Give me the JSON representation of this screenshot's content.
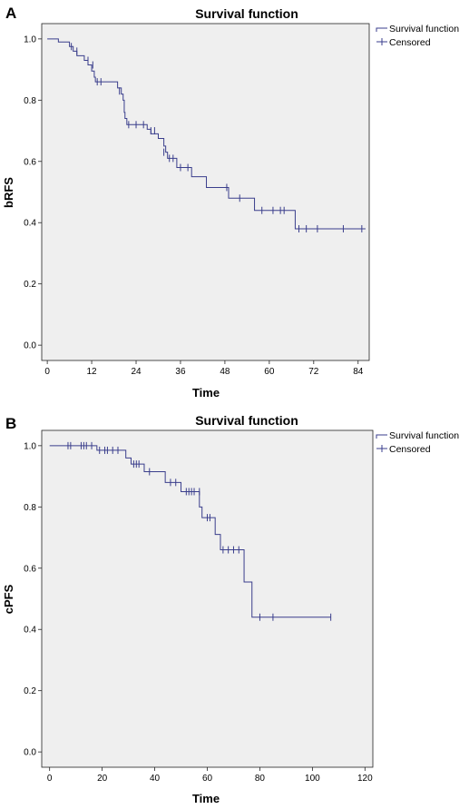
{
  "colors": {
    "line": "#3a3e8c",
    "panel_bg": "#efefef"
  },
  "legend": {
    "survival_label": "Survival function",
    "censored_label": "Censored"
  },
  "chart_data": [
    {
      "type": "line",
      "panel": "A",
      "title": "Survival function",
      "xlabel": "Time",
      "ylabel": "bRFS",
      "xlim": [
        -1.5,
        87
      ],
      "ylim": [
        -0.05,
        1.05
      ],
      "xticks": [
        0,
        12,
        24,
        36,
        48,
        60,
        72,
        84
      ],
      "yticks": [
        0.0,
        0.2,
        0.4,
        0.6,
        0.8,
        1.0
      ],
      "ytick_labels": [
        "0.0",
        "0.2",
        "0.4",
        "0.6",
        "0.8",
        "1.0"
      ],
      "grid": false,
      "legend_position": "top-right",
      "series": [
        {
          "name": "Survival function",
          "steps": [
            [
              0,
              1.0
            ],
            [
              1,
              1.0
            ],
            [
              3,
              0.99
            ],
            [
              6,
              0.975
            ],
            [
              7,
              0.96
            ],
            [
              8,
              0.945
            ],
            [
              10,
              0.93
            ],
            [
              11,
              0.915
            ],
            [
              12,
              0.895
            ],
            [
              12.7,
              0.875
            ],
            [
              13,
              0.86
            ],
            [
              19,
              0.84
            ],
            [
              20,
              0.82
            ],
            [
              20.5,
              0.8
            ],
            [
              20.8,
              0.76
            ],
            [
              21,
              0.74
            ],
            [
              21.5,
              0.72
            ],
            [
              27,
              0.705
            ],
            [
              28,
              0.69
            ],
            [
              30,
              0.675
            ],
            [
              31.5,
              0.65
            ],
            [
              32,
              0.63
            ],
            [
              32.5,
              0.61
            ],
            [
              35,
              0.58
            ],
            [
              39,
              0.55
            ],
            [
              43,
              0.515
            ],
            [
              49,
              0.48
            ],
            [
              53,
              0.48
            ],
            [
              56,
              0.44
            ],
            [
              67,
              0.38
            ]
          ],
          "end_x": 86
        },
        {
          "name": "Censored",
          "points": [
            [
              6.5,
              0.975
            ],
            [
              8,
              0.96
            ],
            [
              11,
              0.93
            ],
            [
              12.3,
              0.915
            ],
            [
              13.5,
              0.86
            ],
            [
              14.5,
              0.86
            ],
            [
              19.5,
              0.83
            ],
            [
              22,
              0.72
            ],
            [
              24,
              0.72
            ],
            [
              26,
              0.72
            ],
            [
              28,
              0.7
            ],
            [
              29,
              0.7
            ],
            [
              31.5,
              0.63
            ],
            [
              33,
              0.61
            ],
            [
              34,
              0.61
            ],
            [
              36,
              0.58
            ],
            [
              38,
              0.58
            ],
            [
              48.5,
              0.515
            ],
            [
              52,
              0.48
            ],
            [
              58,
              0.44
            ],
            [
              61,
              0.44
            ],
            [
              63,
              0.44
            ],
            [
              64,
              0.44
            ],
            [
              68,
              0.38
            ],
            [
              70,
              0.38
            ],
            [
              73,
              0.38
            ],
            [
              80,
              0.38
            ],
            [
              85,
              0.38
            ]
          ]
        }
      ]
    },
    {
      "type": "line",
      "panel": "B",
      "title": "Survival function",
      "xlabel": "Time",
      "ylabel": "cPFS",
      "xlim": [
        -3,
        123
      ],
      "ylim": [
        -0.05,
        1.05
      ],
      "xticks": [
        0,
        20,
        40,
        60,
        80,
        100,
        120
      ],
      "yticks": [
        0.0,
        0.2,
        0.4,
        0.6,
        0.8,
        1.0
      ],
      "ytick_labels": [
        "0.0",
        "0.2",
        "0.4",
        "0.6",
        "0.8",
        "1.0"
      ],
      "grid": false,
      "legend_position": "top-right",
      "series": [
        {
          "name": "Survival function",
          "steps": [
            [
              0,
              1.0
            ],
            [
              18,
              0.985
            ],
            [
              29,
              0.96
            ],
            [
              31,
              0.94
            ],
            [
              36,
              0.915
            ],
            [
              44,
              0.88
            ],
            [
              50,
              0.85
            ],
            [
              57,
              0.8
            ],
            [
              58,
              0.765
            ],
            [
              63,
              0.71
            ],
            [
              65,
              0.66
            ],
            [
              74,
              0.555
            ],
            [
              77,
              0.44
            ]
          ],
          "end_x": 107
        },
        {
          "name": "Censored",
          "points": [
            [
              7,
              1.0
            ],
            [
              8,
              1.0
            ],
            [
              12,
              1.0
            ],
            [
              13,
              1.0
            ],
            [
              14,
              1.0
            ],
            [
              16,
              1.0
            ],
            [
              19,
              0.985
            ],
            [
              21,
              0.985
            ],
            [
              22,
              0.985
            ],
            [
              24,
              0.985
            ],
            [
              26,
              0.985
            ],
            [
              32,
              0.94
            ],
            [
              33,
              0.94
            ],
            [
              34,
              0.94
            ],
            [
              38,
              0.915
            ],
            [
              46,
              0.88
            ],
            [
              48,
              0.88
            ],
            [
              52,
              0.85
            ],
            [
              53,
              0.85
            ],
            [
              54,
              0.85
            ],
            [
              55,
              0.85
            ],
            [
              57,
              0.85
            ],
            [
              60,
              0.765
            ],
            [
              61,
              0.765
            ],
            [
              66,
              0.66
            ],
            [
              68,
              0.66
            ],
            [
              70,
              0.66
            ],
            [
              72,
              0.66
            ],
            [
              80,
              0.44
            ],
            [
              85,
              0.44
            ],
            [
              107,
              0.44
            ]
          ]
        }
      ]
    }
  ],
  "panels": [
    {
      "label": "A"
    },
    {
      "label": "B"
    }
  ]
}
